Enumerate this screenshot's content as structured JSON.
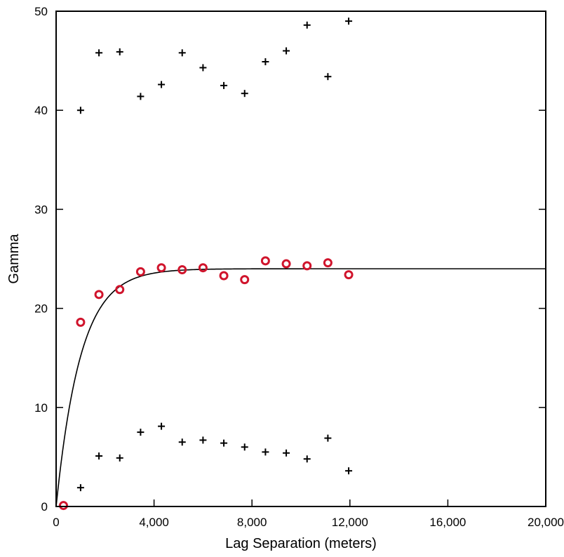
{
  "chart_data": {
    "type": "scatter",
    "title": "",
    "xlabel": "Lag Separation (meters)",
    "ylabel": "Gamma",
    "xlim": [
      0,
      20000
    ],
    "ylim": [
      0,
      50
    ],
    "x_ticks": [
      0,
      4000,
      8000,
      12000,
      16000,
      20000
    ],
    "x_tick_labels": [
      "0",
      "4,000",
      "8,000",
      "12,000",
      "16,000",
      "20,000"
    ],
    "y_ticks": [
      0,
      10,
      20,
      30,
      40,
      50
    ],
    "y_tick_labels": [
      "0",
      "10",
      "20",
      "30",
      "40",
      "50"
    ],
    "grid": false,
    "legend": "none",
    "series": [
      {
        "marker": "circle",
        "color": "#d0142c",
        "x": [
          300,
          1000,
          1750,
          2600,
          3450,
          4300,
          5150,
          6000,
          6850,
          7700,
          8550,
          9400,
          10250,
          11100,
          11950
        ],
        "y": [
          0.1,
          18.6,
          21.4,
          21.9,
          23.7,
          24.1,
          23.9,
          24.1,
          23.3,
          22.9,
          24.8,
          24.5,
          24.3,
          24.6,
          23.4
        ]
      },
      {
        "marker": "plus",
        "color": "#000000",
        "x": [
          1000,
          1750,
          2600,
          3450,
          4300,
          5150,
          6000,
          6850,
          7700,
          8550,
          9400,
          10250,
          11100,
          11950
        ],
        "y": [
          40.0,
          45.8,
          45.9,
          41.4,
          42.6,
          45.8,
          44.3,
          42.5,
          41.7,
          44.9,
          46.0,
          48.6,
          43.4,
          49.0
        ]
      },
      {
        "marker": "plus",
        "color": "#000000",
        "x": [
          1000,
          1750,
          2600,
          3450,
          4300,
          5150,
          6000,
          6850,
          7700,
          8550,
          9400,
          10250,
          11100,
          11950
        ],
        "y": [
          1.9,
          5.1,
          4.9,
          7.5,
          8.1,
          6.5,
          6.7,
          6.4,
          6.0,
          5.5,
          5.4,
          4.8,
          6.9,
          3.6
        ]
      }
    ],
    "model_curve": {
      "type": "exponential",
      "nugget": 0,
      "sill": 24,
      "range": 3000,
      "color": "#000000"
    }
  }
}
